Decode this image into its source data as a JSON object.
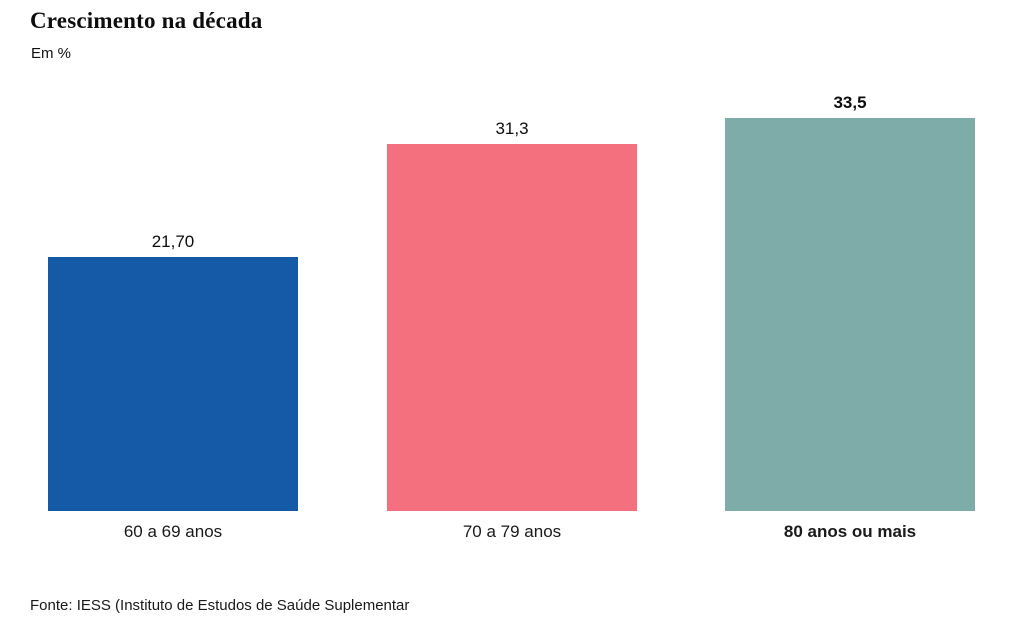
{
  "header": {
    "title": "Crescimento na década",
    "subtitle": "Em %"
  },
  "footer": {
    "source": "Fonte: IESS (Instituto de Estudos de Saúde Suplementar"
  },
  "chart_data": {
    "type": "bar",
    "title": "Crescimento na década",
    "subtitle": "Em %",
    "unit": "%",
    "categories": [
      "60 a 69 anos",
      "70 a 79 anos",
      "80 anos ou mais"
    ],
    "values": [
      21.7,
      31.3,
      33.5
    ],
    "bars": [
      {
        "category": "60 a 69 anos",
        "value": 21.7,
        "value_label": "21,70",
        "color": "#155AA6",
        "bold": false
      },
      {
        "category": "70 a 79 anos",
        "value": 31.3,
        "value_label": "31,3",
        "color": "#F4707F",
        "bold": false
      },
      {
        "category": "80 anos ou mais",
        "value": 33.5,
        "value_label": "33,5",
        "color": "#7EACA8",
        "bold": true
      }
    ],
    "xlabel": "",
    "ylabel": "",
    "ylim": [
      0,
      34
    ],
    "grid": false,
    "legend": "none",
    "axis_lines": false,
    "source": "Fonte: IESS (Instituto de Estudos de Saúde Suplementar"
  }
}
